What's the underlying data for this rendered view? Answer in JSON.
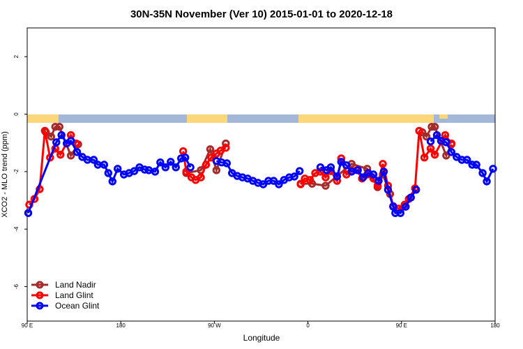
{
  "chart_data": {
    "type": "line",
    "title": "30N-35N November (Ver 10)   2015-01-01 to 2020-12-18",
    "x_label": "Longitude",
    "y_label": "XCO2 - MLO trend (ppm)",
    "xlim": [
      90,
      540
    ],
    "xticks": [
      {
        "value": 90,
        "label": "90 E"
      },
      {
        "value": 180,
        "label": "180"
      },
      {
        "value": 270,
        "label": "90 W"
      },
      {
        "value": 360,
        "label": "0"
      },
      {
        "value": 450,
        "label": "90 E"
      },
      {
        "value": 540,
        "label": "180"
      }
    ],
    "ylim": [
      -7.2,
      3.0
    ],
    "yticks": [
      -6,
      -4,
      -2,
      0,
      2
    ],
    "legend": "bottom-left",
    "series": [
      {
        "name": "Land Nadir",
        "color": "#a52a2a",
        "x": [
          108,
          113,
          117,
          121,
          132,
          139,
          null,
          243,
          257,
          266,
          272,
          281,
          null,
          353,
          364,
          377,
          402,
          417,
          427,
          432,
          439,
          null,
          470,
          474,
          479,
          482,
          493,
          498
        ],
        "values": [
          -0.63,
          -0.78,
          -0.44,
          -0.44,
          -1.44,
          -1.05,
          null,
          -2.05,
          -1.95,
          -1.22,
          -1.95,
          -1.02,
          null,
          -2.42,
          -2.42,
          -2.49,
          -1.73,
          -1.9,
          -2.54,
          -2.1,
          -2.78,
          null,
          -0.63,
          -0.78,
          -0.44,
          -0.44,
          -1.44,
          -1.05
        ]
      },
      {
        "name": "Land Glint",
        "color": "#ff0000",
        "x": [
          92,
          97,
          102,
          107,
          112,
          117,
          122,
          132,
          137,
          null,
          240,
          243,
          248,
          252,
          257,
          262,
          267,
          272,
          276,
          281,
          null,
          353,
          357,
          362,
          367,
          372,
          377,
          382,
          388,
          392,
          397,
          402,
          407,
          412,
          417,
          423,
          427,
          432,
          437,
          442,
          447,
          453,
          457,
          463,
          467,
          472,
          478,
          482,
          492,
          498
        ],
        "values": [
          -3.15,
          -2.95,
          -2.61,
          -0.58,
          -1.51,
          -1.2,
          -1.41,
          -0.73,
          -1.02,
          null,
          -1.29,
          -2.0,
          -2.2,
          -2.29,
          -2.2,
          -1.76,
          -1.51,
          -1.37,
          -1.27,
          -1.17,
          null,
          -2.44,
          -2.24,
          -2.29,
          -2.05,
          -2.0,
          -2.2,
          -1.98,
          -2.32,
          -1.54,
          -2.1,
          -1.98,
          -1.95,
          -2.24,
          -2.1,
          -2.24,
          -2.49,
          -1.73,
          -2.49,
          -3.2,
          -3.29,
          -3.15,
          -2.95,
          -2.58,
          -0.58,
          -1.51,
          -1.2,
          -1.41,
          -0.73,
          -1.02
        ]
      },
      {
        "name": "Ocean Glint",
        "color": "#0000ff",
        "x": [
          91,
          118,
          123,
          128,
          132,
          138,
          143,
          148,
          154,
          158,
          164,
          168,
          172,
          177,
          183,
          188,
          193,
          198,
          203,
          207,
          213,
          218,
          223,
          228,
          233,
          238,
          242,
          247,
          null,
          272,
          277,
          282,
          287,
          292,
          297,
          302,
          307,
          312,
          317,
          322,
          327,
          332,
          337,
          342,
          347,
          352,
          null,
          372,
          378,
          382,
          388,
          392,
          397,
          402,
          408,
          413,
          418,
          423,
          428,
          433,
          437,
          442,
          444,
          449,
          454,
          459,
          464,
          null,
          478,
          484,
          488,
          493,
          498,
          503,
          508,
          513,
          518,
          522,
          528,
          532,
          538
        ],
        "values": [
          -3.44,
          -0.98,
          -0.73,
          -1.02,
          -0.93,
          -1.32,
          -1.49,
          -1.59,
          -1.59,
          -1.76,
          -1.76,
          -2.05,
          -2.34,
          -1.9,
          -2.1,
          -2.05,
          -1.98,
          -1.85,
          -1.93,
          -1.95,
          -2.0,
          -1.68,
          -1.85,
          -1.66,
          -1.85,
          -1.54,
          -1.51,
          -1.85,
          null,
          -1.63,
          -1.68,
          -1.71,
          -2.05,
          -2.15,
          -2.2,
          -2.24,
          -2.32,
          -2.39,
          -2.44,
          -2.32,
          -2.32,
          -2.44,
          -2.29,
          -2.2,
          -2.17,
          -1.98,
          null,
          -1.85,
          -1.95,
          -1.85,
          -2.17,
          -1.66,
          -1.78,
          -2.0,
          -1.95,
          -2.2,
          -2.05,
          -2.1,
          -2.32,
          -2.0,
          -2.63,
          -3.22,
          -3.44,
          -3.44,
          -3.22,
          -2.9,
          -2.63,
          null,
          -0.95,
          -0.73,
          -0.93,
          -0.98,
          -1.32,
          -1.49,
          -1.59,
          -1.59,
          -1.76,
          -1.76,
          -2.05,
          -2.34,
          -1.9
        ]
      }
    ]
  }
}
